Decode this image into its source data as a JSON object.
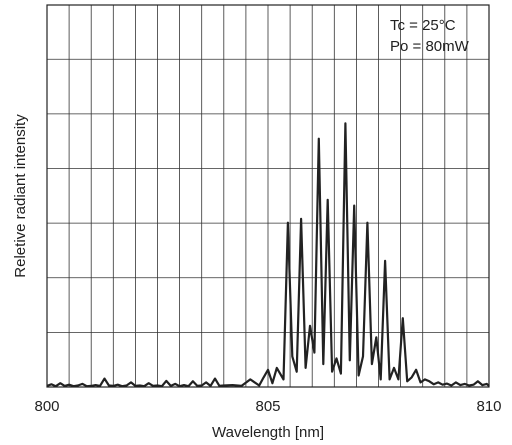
{
  "chart_data": {
    "type": "line",
    "title": "",
    "xlabel": "Wavelength [nm]",
    "ylabel": "Reletive radiant intensity",
    "xlim": [
      800,
      810
    ],
    "ylim": [
      0,
      1
    ],
    "x_ticks": [
      {
        "value": 800,
        "label": "800"
      },
      {
        "value": 805,
        "label": "805"
      },
      {
        "value": 810,
        "label": "810"
      }
    ],
    "y_ticks": [],
    "grid": true,
    "grid_x_step": 0.5,
    "grid_y_step": 0.143,
    "annotations": [
      "Tc = 25°C",
      "Po = 80mW"
    ],
    "annotation_position": "top-right",
    "color": "#222222",
    "series": [
      {
        "x": [
          800.0,
          800.1,
          800.2,
          800.3,
          800.4,
          800.5,
          800.6,
          800.7,
          800.8,
          800.9,
          801.0,
          801.1,
          801.2,
          801.3,
          801.4,
          801.5,
          801.6,
          801.7,
          801.8,
          801.9,
          802.0,
          802.1,
          802.2,
          802.3,
          802.4,
          802.5,
          802.6,
          802.7,
          802.8,
          802.9,
          803.0,
          803.1,
          803.2,
          803.3,
          803.4,
          803.5,
          803.6,
          803.7,
          803.8,
          803.9,
          804.0,
          804.2,
          804.4,
          804.6,
          804.8,
          804.9,
          805.0,
          805.1,
          805.2,
          805.35,
          805.45,
          805.55,
          805.65,
          805.75,
          805.85,
          805.95,
          806.05,
          806.15,
          806.25,
          806.35,
          806.45,
          806.55,
          806.65,
          806.75,
          806.85,
          806.95,
          807.05,
          807.15,
          807.25,
          807.35,
          807.45,
          807.55,
          807.65,
          807.75,
          807.85,
          807.95,
          808.05,
          808.15,
          808.25,
          808.35,
          808.45,
          808.55,
          808.65,
          808.75,
          808.85,
          808.95,
          809.05,
          809.15,
          809.25,
          809.35,
          809.45,
          809.55,
          809.65,
          809.75,
          809.85,
          809.95,
          810.0
        ],
        "y": [
          0.003,
          0.007,
          0.002,
          0.01,
          0.003,
          0.006,
          0.002,
          0.004,
          0.008,
          0.002,
          0.003,
          0.005,
          0.003,
          0.022,
          0.004,
          0.003,
          0.006,
          0.002,
          0.004,
          0.012,
          0.003,
          0.004,
          0.002,
          0.01,
          0.003,
          0.004,
          0.002,
          0.016,
          0.003,
          0.008,
          0.002,
          0.005,
          0.002,
          0.015,
          0.003,
          0.004,
          0.012,
          0.003,
          0.022,
          0.003,
          0.004,
          0.005,
          0.003,
          0.02,
          0.004,
          0.025,
          0.045,
          0.01,
          0.05,
          0.02,
          0.43,
          0.08,
          0.04,
          0.44,
          0.05,
          0.16,
          0.09,
          0.65,
          0.06,
          0.49,
          0.04,
          0.075,
          0.035,
          0.69,
          0.07,
          0.475,
          0.03,
          0.08,
          0.43,
          0.06,
          0.13,
          0.02,
          0.33,
          0.02,
          0.05,
          0.02,
          0.18,
          0.015,
          0.025,
          0.045,
          0.012,
          0.02,
          0.015,
          0.007,
          0.012,
          0.006,
          0.009,
          0.004,
          0.012,
          0.005,
          0.008,
          0.004,
          0.006,
          0.015,
          0.005,
          0.008,
          0.003
        ]
      }
    ]
  }
}
